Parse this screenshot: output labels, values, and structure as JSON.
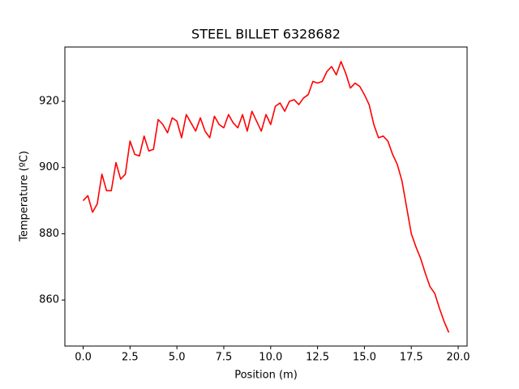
{
  "chart_data": {
    "type": "line",
    "title": "STEEL BILLET 6328682",
    "x_label": "Position (m)",
    "y_label": "Temperature (ºC)",
    "color": "#ff0000",
    "x": [
      0,
      0.25,
      0.5,
      0.75,
      1.0,
      1.25,
      1.5,
      1.75,
      2.0,
      2.25,
      2.5,
      2.75,
      3.0,
      3.25,
      3.5,
      3.75,
      4.0,
      4.25,
      4.5,
      4.75,
      5.0,
      5.25,
      5.5,
      5.75,
      6.0,
      6.25,
      6.5,
      6.75,
      7.0,
      7.25,
      7.5,
      7.75,
      8.0,
      8.25,
      8.5,
      8.75,
      9.0,
      9.25,
      9.5,
      9.75,
      10.0,
      10.25,
      10.5,
      10.75,
      11.0,
      11.25,
      11.5,
      11.75,
      12.0,
      12.25,
      12.5,
      12.75,
      13.0,
      13.25,
      13.5,
      13.75,
      14.0,
      14.25,
      14.5,
      14.75,
      15.0,
      15.25,
      15.5,
      15.75,
      16.0,
      16.25,
      16.5,
      16.75,
      17.0,
      17.25,
      17.5,
      17.75,
      18.0,
      18.25,
      18.5,
      18.75,
      19.0,
      19.25,
      19.5
    ],
    "values": [
      890,
      891.5,
      886.5,
      889,
      898,
      893,
      893,
      901.5,
      896.5,
      898,
      908,
      904,
      903.5,
      909.5,
      905,
      905.5,
      914.5,
      913,
      910.5,
      915,
      914,
      909,
      916,
      913.5,
      911,
      915,
      911,
      909,
      915.5,
      913,
      912,
      916,
      913.5,
      912,
      916,
      911,
      917,
      914,
      911,
      916,
      913,
      918.5,
      919.5,
      917,
      920,
      920.5,
      919,
      921,
      922,
      926,
      925.5,
      926,
      929,
      930.5,
      928,
      932,
      928.5,
      924,
      925.5,
      924.5,
      922,
      919,
      913,
      909,
      909.5,
      908,
      904,
      901,
      896,
      888,
      880,
      876,
      872.5,
      868,
      864,
      862,
      857.5,
      853.5,
      850.2
    ],
    "xlim": [
      -0.975,
      20.475
    ],
    "ylim": [
      846.1,
      936.4
    ],
    "xticks": [
      {
        "value": 0,
        "label": "0.0"
      },
      {
        "value": 2.5,
        "label": "2.5"
      },
      {
        "value": 5,
        "label": "5.0"
      },
      {
        "value": 7.5,
        "label": "7.5"
      },
      {
        "value": 10,
        "label": "10.0"
      },
      {
        "value": 12.5,
        "label": "12.5"
      },
      {
        "value": 15,
        "label": "15.0"
      },
      {
        "value": 17.5,
        "label": "17.5"
      },
      {
        "value": 20,
        "label": "20.0"
      }
    ],
    "yticks": [
      860,
      880,
      900,
      920
    ],
    "grid": false
  }
}
